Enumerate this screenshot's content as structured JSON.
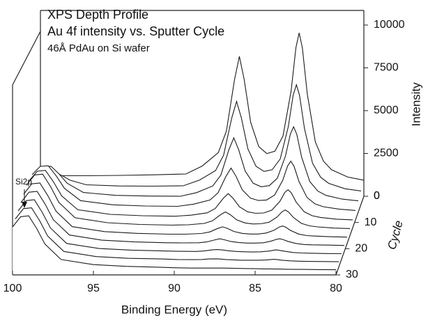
{
  "chart_data": {
    "type": "waterfall3d",
    "title": "XPS Depth Profile",
    "subtitle": "Au 4f intensity vs. Sputter Cycle",
    "note": "46Å PdAu on Si wafer",
    "annotation": "Si2p",
    "x_label": "Binding Energy (eV)",
    "y_label": "Intensity",
    "z_label": "Cycle",
    "xlim": [
      100,
      80
    ],
    "xticks": [
      100,
      95,
      90,
      85,
      80
    ],
    "ylim": [
      0,
      10800
    ],
    "yticks": [
      0,
      2500,
      5000,
      7500,
      10000
    ],
    "zlim": [
      0,
      30
    ],
    "zticks": [
      0,
      10,
      20,
      30
    ],
    "color": "#1a1a1a",
    "x": [
      100,
      99.5,
      99,
      98.5,
      98,
      97,
      95,
      93,
      91,
      90,
      89,
      88.5,
      88,
      87.7,
      87.4,
      87,
      86.5,
      86,
      85.5,
      85,
      84.5,
      84.2,
      84,
      83.8,
      83.5,
      83,
      82.5,
      82,
      81,
      80
    ],
    "z": [
      0,
      3,
      6,
      9,
      12,
      15,
      18,
      21,
      24,
      27,
      30
    ],
    "series": [
      {
        "values": [
          1200,
          1200,
          1200,
          1200,
          1200,
          1200,
          1220,
          1250,
          1300,
          1764,
          2550,
          3810,
          6800,
          8170,
          6820,
          4320,
          2900,
          2490,
          2630,
          3520,
          6140,
          8700,
          9540,
          8660,
          5980,
          3170,
          2050,
          1550,
          1120,
          940
        ]
      },
      {
        "values": [
          1700,
          1880,
          1900,
          1670,
          1400,
          1130,
          1060,
          1050,
          1070,
          1400,
          1960,
          2860,
          5020,
          6000,
          5030,
          3230,
          2210,
          1910,
          2010,
          2640,
          4530,
          6370,
          6970,
          6340,
          4410,
          2380,
          1570,
          1210,
          900,
          770
        ]
      },
      {
        "values": [
          2280,
          2640,
          2670,
          2220,
          1680,
          1140,
          970,
          930,
          920,
          1130,
          1520,
          2150,
          3640,
          4330,
          3650,
          2400,
          1680,
          1470,
          1540,
          1980,
          3280,
          4560,
          4980,
          4530,
          3190,
          1780,
          1220,
          970,
          750,
          650
        ]
      },
      {
        "values": [
          2640,
          3120,
          3160,
          2560,
          1840,
          1120,
          880,
          810,
          790,
          920,
          1160,
          1580,
          2560,
          3020,
          2570,
          1750,
          1270,
          1130,
          1160,
          1450,
          2310,
          3150,
          3430,
          3130,
          2250,
          1310,
          930,
          770,
          620,
          550
        ]
      },
      {
        "values": [
          2760,
          3300,
          3350,
          2670,
          1860,
          1050,
          780,
          700,
          670,
          730,
          870,
          1120,
          1720,
          1990,
          1720,
          1220,
          930,
          840,
          860,
          1030,
          1540,
          2060,
          2220,
          2040,
          1500,
          930,
          700,
          600,
          500,
          460
        ]
      },
      {
        "values": [
          2940,
          3540,
          3590,
          2840,
          1940,
          1040,
          750,
          650,
          610,
          630,
          710,
          860,
          1220,
          1380,
          1220,
          920,
          740,
          680,
          690,
          780,
          1090,
          1390,
          1500,
          1380,
          1060,
          710,
          570,
          510,
          440,
          410
        ]
      },
      {
        "values": [
          2880,
          3480,
          3530,
          2780,
          1880,
          980,
          690,
          590,
          540,
          540,
          580,
          670,
          880,
          970,
          880,
          700,
          590,
          550,
          550,
          610,
          780,
          960,
          1020,
          950,
          760,
          550,
          460,
          430,
          390,
          370
        ]
      },
      {
        "values": [
          2850,
          3450,
          3500,
          2750,
          1850,
          950,
          650,
          550,
          500,
          490,
          500,
          550,
          670,
          730,
          670,
          570,
          510,
          480,
          480,
          500,
          600,
          700,
          730,
          690,
          580,
          460,
          400,
          380,
          360,
          340
        ]
      },
      {
        "values": [
          2820,
          3420,
          3470,
          2720,
          1820,
          920,
          620,
          530,
          480,
          460,
          450,
          480,
          540,
          560,
          540,
          490,
          450,
          430,
          420,
          430,
          470,
          520,
          540,
          510,
          460,
          390,
          360,
          350,
          330,
          320
        ]
      },
      {
        "values": [
          2810,
          3410,
          3460,
          2710,
          1810,
          910,
          610,
          510,
          470,
          440,
          430,
          440,
          470,
          480,
          470,
          440,
          420,
          400,
          400,
          400,
          410,
          440,
          450,
          430,
          400,
          360,
          340,
          330,
          320,
          310
        ]
      },
      {
        "values": [
          2800,
          3400,
          3450,
          2700,
          1800,
          900,
          600,
          500,
          450,
          420,
          400,
          400,
          400,
          400,
          400,
          400,
          390,
          380,
          370,
          360,
          350,
          350,
          350,
          340,
          340,
          330,
          320,
          320,
          310,
          300
        ]
      }
    ]
  }
}
